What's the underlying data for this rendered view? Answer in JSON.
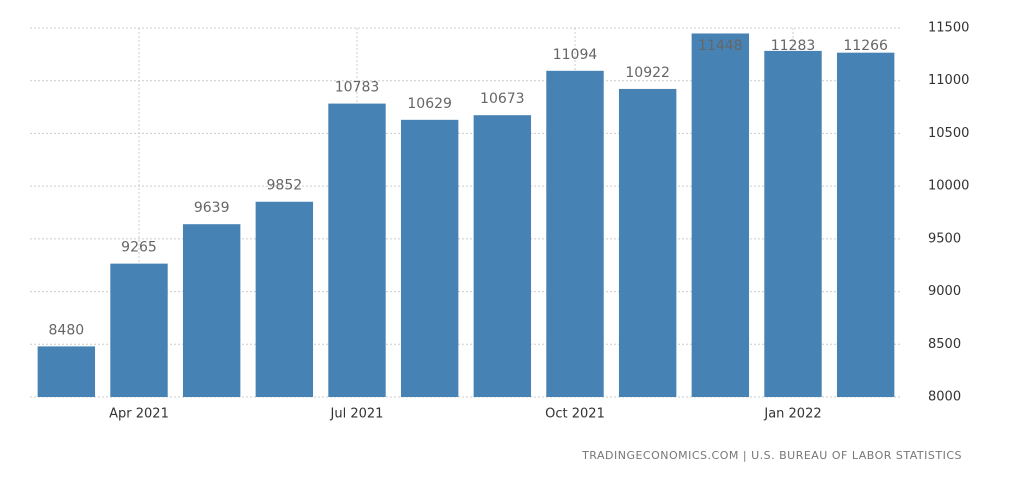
{
  "chart_data": {
    "type": "bar",
    "categories": [
      null,
      "Apr 2021",
      null,
      null,
      "Jul 2021",
      null,
      null,
      "Oct 2021",
      null,
      null,
      "Jan 2022",
      null
    ],
    "values": [
      8480,
      9265,
      9639,
      9852,
      10783,
      10629,
      10673,
      11094,
      10922,
      11448,
      11283,
      11266
    ],
    "color": "#4682b4",
    "ylim": [
      8000,
      11500
    ],
    "yticks": [
      8000,
      8500,
      9000,
      9500,
      10000,
      10500,
      11000,
      11500
    ],
    "grid": true,
    "source": "TRADINGECONOMICS.COM | U.S. BUREAU OF LABOR STATISTICS"
  }
}
